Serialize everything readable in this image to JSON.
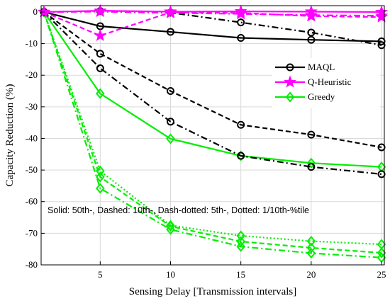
{
  "chart_data": {
    "type": "line",
    "xlabel": "Sensing Delay [Transmission intervals]",
    "ylabel": "Capacity Reduction (%)",
    "xlim": [
      0.8,
      25.2
    ],
    "ylim": [
      -80,
      2
    ],
    "xticks": [
      5,
      10,
      15,
      20,
      25
    ],
    "yticks": [
      0,
      -10,
      -20,
      -30,
      -40,
      -50,
      -60,
      -70,
      -80
    ],
    "grid": true,
    "legend_position": "right",
    "legend": [
      "MAQL",
      "Q-Heuristic",
      "Greedy"
    ],
    "annotation": "Solid: 50th-, Dashed: 10th-, Dash-dotted: 5th-, Dotted: 1/10th-%tile",
    "colors": {
      "MAQL": "#000000",
      "Q-Heuristic": "#ff00ff",
      "Greedy": "#00ee00"
    },
    "x": [
      1,
      5,
      10,
      15,
      20,
      25
    ],
    "series": [
      {
        "algorithm": "MAQL",
        "percentile": "50th",
        "style": "solid",
        "values": [
          0,
          -4.5,
          -6.3,
          -8.2,
          -8.8,
          -9.3
        ]
      },
      {
        "algorithm": "MAQL",
        "percentile": "10th",
        "style": "dashed",
        "values": [
          0,
          -13.2,
          -25,
          -35.7,
          -38.8,
          -42.8
        ]
      },
      {
        "algorithm": "MAQL",
        "percentile": "5th",
        "style": "dashdot",
        "values": [
          0,
          -17.8,
          -34.7,
          -45.5,
          -49,
          -51.3
        ]
      },
      {
        "algorithm": "MAQL",
        "percentile": "1/10th",
        "style": "dashdot-upper",
        "values": [
          0,
          0.3,
          -0.2,
          -3.3,
          -6.5,
          -10.5
        ]
      },
      {
        "algorithm": "Q-Heuristic",
        "percentile": "50th",
        "style": "solid",
        "values": [
          0,
          0.4,
          0.1,
          0.2,
          0.1,
          0.0
        ]
      },
      {
        "algorithm": "Q-Heuristic",
        "percentile": "10th",
        "style": "dashed",
        "values": [
          0,
          -7.5,
          -0.1,
          -0.3,
          -1.3,
          -1.6
        ]
      },
      {
        "algorithm": "Q-Heuristic",
        "percentile": "5th",
        "style": "dashdot",
        "values": [
          0,
          0.1,
          -0.3,
          -0.6,
          -1.0,
          -1.2
        ]
      },
      {
        "algorithm": "Greedy",
        "percentile": "50th",
        "style": "solid",
        "values": [
          0,
          -25.8,
          -40.1,
          -45.5,
          -47.8,
          -49.0
        ]
      },
      {
        "algorithm": "Greedy",
        "percentile": "10th",
        "style": "dashed",
        "values": [
          0,
          -52.2,
          -67.8,
          -72.6,
          -74.6,
          -76.2
        ]
      },
      {
        "algorithm": "Greedy",
        "percentile": "5th",
        "style": "dashdot",
        "values": [
          0,
          -55.8,
          -68.8,
          -74.2,
          -76.3,
          -77.7
        ]
      },
      {
        "algorithm": "Greedy",
        "percentile": "1/10th",
        "style": "dotted",
        "values": [
          0,
          -50.3,
          -67.5,
          -70.8,
          -72.5,
          -73.5
        ]
      }
    ]
  }
}
